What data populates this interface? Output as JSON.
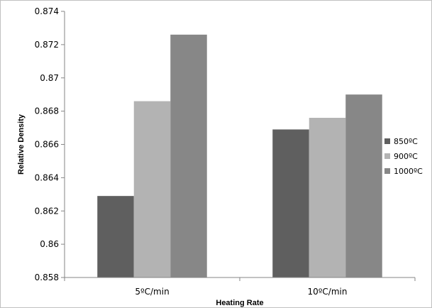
{
  "chart_data": {
    "type": "bar",
    "title": "",
    "xlabel": "Heating Rate",
    "ylabel": "Relative Density",
    "categories": [
      "5ºC/min",
      "10ºC/min"
    ],
    "series": [
      {
        "name": "850ºC",
        "values": [
          0.8629,
          0.8669
        ],
        "color": "#5f5f5f"
      },
      {
        "name": "900ºC",
        "values": [
          0.8686,
          0.8676
        ],
        "color": "#b3b3b3"
      },
      {
        "name": "1000ºC",
        "values": [
          0.8726,
          0.869
        ],
        "color": "#878787"
      }
    ],
    "ylim": [
      0.858,
      0.874
    ],
    "yticks": [
      "0.858",
      "0.86",
      "0.862",
      "0.864",
      "0.866",
      "0.868",
      "0.87",
      "0.872",
      "0.874"
    ],
    "grid": false,
    "legend": "right"
  }
}
